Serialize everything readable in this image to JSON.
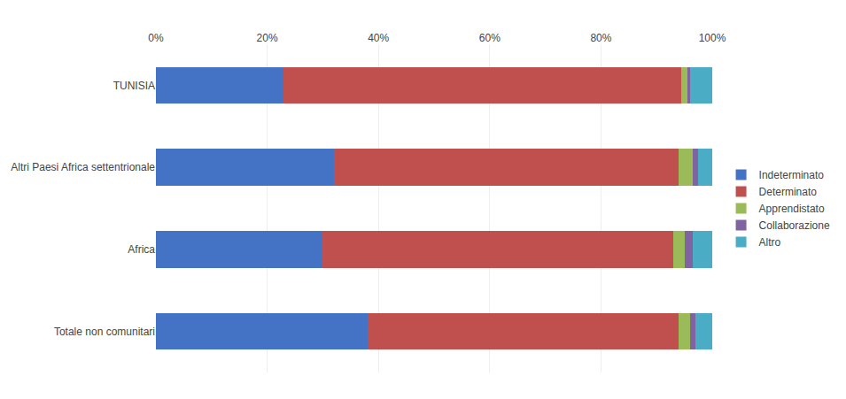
{
  "chart_data": {
    "type": "bar",
    "orientation": "horizontal",
    "stacked": true,
    "categories": [
      "Totale non comunitari",
      "Africa",
      "Altri Paesi Africa settentrionale",
      "TUNISIA"
    ],
    "series": [
      {
        "name": "Indeterminato",
        "color": "#4472C4",
        "values": [
          38.0,
          30.0,
          32.0,
          23.0
        ]
      },
      {
        "name": "Determinato",
        "color": "#C0504D",
        "values": [
          56.0,
          63.0,
          62.0,
          71.5
        ]
      },
      {
        "name": "Apprendistato",
        "color": "#9BBB59",
        "values": [
          2.0,
          2.0,
          2.5,
          1.0
        ]
      },
      {
        "name": "Collaborazione",
        "color": "#8064A2",
        "values": [
          1.0,
          1.5,
          1.0,
          0.5
        ]
      },
      {
        "name": "Altro",
        "color": "#4BACC6",
        "values": [
          3.0,
          3.5,
          2.5,
          4.0
        ]
      }
    ],
    "xlim": [
      0,
      100
    ],
    "xticks": [
      {
        "value": 0,
        "label": "0%"
      },
      {
        "value": 20,
        "label": "20%"
      },
      {
        "value": 40,
        "label": "40%"
      },
      {
        "value": 60,
        "label": "60%"
      },
      {
        "value": 80,
        "label": "80%"
      },
      {
        "value": 100,
        "label": "100%"
      }
    ],
    "grid": true,
    "legend": "right"
  }
}
